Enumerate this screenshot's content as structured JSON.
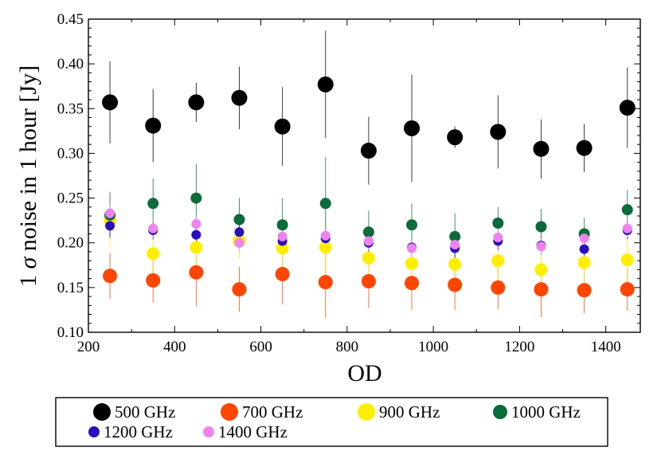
{
  "chart_data": {
    "type": "scatter",
    "title": "",
    "xlabel": "OD",
    "ylabel_prefix": "1 ",
    "ylabel_symbol": "σ",
    "ylabel_suffix": " noise in 1 hour [Jy]",
    "xlim": [
      200,
      1480
    ],
    "ylim": [
      0.1,
      0.45
    ],
    "xticks": [
      200,
      400,
      600,
      800,
      1000,
      1200,
      1400
    ],
    "xtick_labels": [
      "200",
      "400",
      "600",
      "800",
      "1000",
      "1200",
      "1400"
    ],
    "yticks": [
      0.1,
      0.15,
      0.2,
      0.25,
      0.3,
      0.35,
      0.4,
      0.45
    ],
    "ytick_labels": [
      "0.10",
      "0.15",
      "0.20",
      "0.25",
      "0.30",
      "0.35",
      "0.40",
      "0.45"
    ],
    "grid": false,
    "legend_position": "bottom",
    "x": [
      250,
      350,
      450,
      550,
      650,
      750,
      850,
      950,
      1050,
      1150,
      1250,
      1350,
      1450
    ],
    "series": [
      {
        "name": "500 GHz",
        "color": "#000000",
        "values": [
          0.357,
          0.331,
          0.357,
          0.362,
          0.33,
          0.377,
          0.303,
          0.328,
          0.318,
          0.324,
          0.305,
          0.306,
          0.351
        ],
        "err": [
          0.046,
          0.041,
          0.022,
          0.035,
          0.044,
          0.06,
          0.038,
          0.06,
          0.012,
          0.041,
          0.033,
          0.027,
          0.045
        ]
      },
      {
        "name": "700 GHz",
        "color": "#ff4500",
        "values": [
          0.163,
          0.158,
          0.167,
          0.148,
          0.165,
          0.156,
          0.157,
          0.155,
          0.153,
          0.15,
          0.148,
          0.147,
          0.148
        ],
        "err": [
          0.026,
          0.025,
          0.038,
          0.025,
          0.034,
          0.04,
          0.03,
          0.03,
          0.028,
          0.024,
          0.031,
          0.026,
          0.024
        ]
      },
      {
        "name": "900 GHz",
        "color": "#ffee00",
        "values": [
          0.225,
          0.188,
          0.195,
          0.202,
          0.194,
          0.195,
          0.183,
          0.177,
          0.176,
          0.18,
          0.17,
          0.178,
          0.181
        ],
        "err": [
          0.03,
          0.024,
          0.03,
          0.02,
          0.028,
          0.034,
          0.03,
          0.025,
          0.026,
          0.024,
          0.025,
          0.025,
          0.024
        ]
      },
      {
        "name": "1000 GHz",
        "color": "#0b6b3a",
        "values": [
          0.231,
          0.244,
          0.25,
          0.226,
          0.22,
          0.244,
          0.212,
          0.22,
          0.207,
          0.222,
          0.218,
          0.21,
          0.237
        ],
        "err": [
          0.026,
          0.028,
          0.038,
          0.024,
          0.03,
          0.052,
          0.024,
          0.024,
          0.026,
          0.018,
          0.02,
          0.018,
          0.022
        ]
      },
      {
        "name": "1200 GHz",
        "color": "#2a0fc0",
        "values": [
          0.219,
          0.214,
          0.209,
          0.212,
          0.202,
          0.205,
          0.2,
          0.195,
          0.194,
          0.202,
          0.197,
          0.193,
          0.214
        ],
        "err": [
          0.012,
          0.01,
          0.012,
          0.01,
          0.01,
          0.012,
          0.01,
          0.01,
          0.01,
          0.01,
          0.01,
          0.01,
          0.01
        ]
      },
      {
        "name": "1400 GHz",
        "color": "#ee82ee",
        "values": [
          0.233,
          0.216,
          0.221,
          0.2,
          0.207,
          0.208,
          0.202,
          0.194,
          0.198,
          0.206,
          0.196,
          0.205,
          0.216
        ],
        "err": [
          0.01,
          0.01,
          0.01,
          0.01,
          0.01,
          0.01,
          0.01,
          0.01,
          0.01,
          0.01,
          0.01,
          0.01,
          0.01
        ]
      }
    ]
  }
}
